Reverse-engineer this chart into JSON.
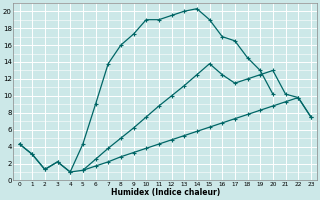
{
  "title": "",
  "xlabel": "Humidex (Indice chaleur)",
  "bg_color": "#cce8e8",
  "grid_color": "#ffffff",
  "line_color": "#006666",
  "xlim": [
    -0.5,
    23.5
  ],
  "ylim": [
    0,
    21
  ],
  "xticks": [
    0,
    1,
    2,
    3,
    4,
    5,
    6,
    7,
    8,
    9,
    10,
    11,
    12,
    13,
    14,
    15,
    16,
    17,
    18,
    19,
    20,
    21,
    22,
    23
  ],
  "yticks": [
    0,
    2,
    4,
    6,
    8,
    10,
    12,
    14,
    16,
    18,
    20
  ],
  "line1_x": [
    0,
    1,
    2,
    3,
    4,
    5,
    6,
    7,
    8,
    9,
    10,
    11,
    12,
    13,
    14,
    15,
    16,
    17,
    18,
    19,
    20
  ],
  "line1_y": [
    4.3,
    3.1,
    1.3,
    2.2,
    1.0,
    4.3,
    9.0,
    13.8,
    16.0,
    17.3,
    19.0,
    19.0,
    19.5,
    20.0,
    20.3,
    19.0,
    17.0,
    16.5,
    14.5,
    13.0,
    10.2
  ],
  "line2_x": [
    0,
    1,
    2,
    3,
    4,
    5,
    6,
    7,
    8,
    9,
    10,
    11,
    12,
    13,
    14,
    15,
    16,
    17,
    18,
    19,
    20,
    21,
    22,
    23
  ],
  "line2_y": [
    4.3,
    3.1,
    1.3,
    2.2,
    1.0,
    1.2,
    1.7,
    2.2,
    2.8,
    3.3,
    3.8,
    4.3,
    4.8,
    5.3,
    5.8,
    6.3,
    6.8,
    7.3,
    7.8,
    8.3,
    8.8,
    9.3,
    9.8,
    7.5
  ],
  "line3_x": [
    5,
    6,
    7,
    8,
    9,
    10,
    11,
    12,
    13,
    14,
    15,
    16,
    17,
    18,
    19,
    20,
    21,
    22,
    23
  ],
  "line3_y": [
    1.2,
    2.5,
    3.8,
    5.0,
    6.2,
    7.5,
    8.8,
    10.0,
    11.2,
    12.5,
    13.8,
    12.5,
    11.5,
    12.0,
    12.5,
    13.0,
    10.2,
    9.8,
    7.5
  ]
}
